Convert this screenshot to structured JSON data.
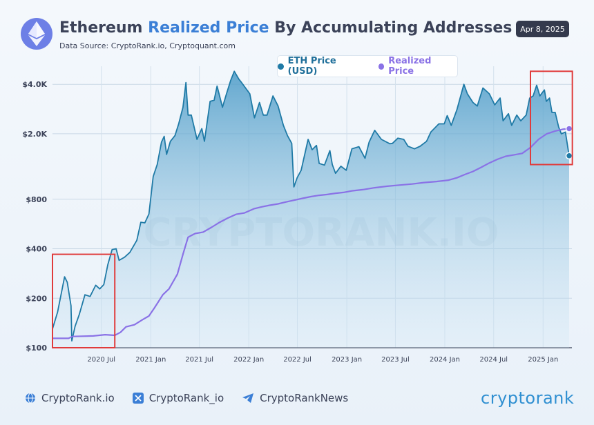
{
  "header": {
    "title_part1": "Ethereum ",
    "title_highlight": "Realized Price",
    "title_part2": " By Accumulating Addresses",
    "source": "Data Source: CryptoRank.io, Cryptoquant.com",
    "date": "Apr 8, 2025",
    "logo_icon": "ethereum-icon"
  },
  "footer": {
    "items": [
      {
        "icon": "globe-icon",
        "label": "CryptoRank.io"
      },
      {
        "icon": "x-icon",
        "label": "CryptoRank_io"
      },
      {
        "icon": "telegram-icon",
        "label": "CryptoRankNews"
      }
    ],
    "brand": "cryptorank"
  },
  "watermark": "CRYPTORANK.IO",
  "colors": {
    "eth": "#1f7aa6",
    "realized": "#8a72e6",
    "highlight": "#e03b3b",
    "title_accent": "#3b7fd6"
  },
  "chart_data": {
    "type": "line",
    "title": "Ethereum Realized Price By Accumulating Addresses",
    "xlabel": "",
    "ylabel": "",
    "y_scale": "log",
    "ylim": [
      100,
      4500
    ],
    "yticks": [
      100,
      200,
      400,
      800,
      2000,
      4000
    ],
    "ytick_labels": [
      "$100",
      "$200",
      "$400",
      "$800",
      "$2.0K",
      "$4.0K"
    ],
    "xlim": [
      "2020-01-01",
      "2025-04-08"
    ],
    "xticks": [
      "2020-07-01",
      "2021-01-01",
      "2021-07-01",
      "2022-01-01",
      "2022-07-01",
      "2023-01-01",
      "2023-07-01",
      "2024-01-01",
      "2024-07-01",
      "2025-01-01"
    ],
    "xtick_labels": [
      "2020 Jul",
      "2021 Jan",
      "2021 Jul",
      "2022 Jan",
      "2022 Jul",
      "2023 Jan",
      "2023 Jul",
      "2024 Jan",
      "2024 Jul",
      "2025 Jan"
    ],
    "grid": true,
    "legend": "top-center",
    "series": [
      {
        "name": "ETH Price (USD)",
        "color": "#1f7aa6",
        "area": true,
        "points": [
          [
            "2020-01-01",
            130
          ],
          [
            "2020-01-20",
            165
          ],
          [
            "2020-02-15",
            270
          ],
          [
            "2020-02-25",
            250
          ],
          [
            "2020-03-10",
            180
          ],
          [
            "2020-03-13",
            110
          ],
          [
            "2020-03-25",
            135
          ],
          [
            "2020-04-10",
            160
          ],
          [
            "2020-05-01",
            210
          ],
          [
            "2020-05-20",
            205
          ],
          [
            "2020-06-10",
            240
          ],
          [
            "2020-06-25",
            228
          ],
          [
            "2020-07-10",
            242
          ],
          [
            "2020-07-25",
            320
          ],
          [
            "2020-08-10",
            395
          ],
          [
            "2020-08-25",
            400
          ],
          [
            "2020-09-05",
            340
          ],
          [
            "2020-09-25",
            355
          ],
          [
            "2020-10-15",
            380
          ],
          [
            "2020-11-10",
            450
          ],
          [
            "2020-11-25",
            580
          ],
          [
            "2020-12-10",
            575
          ],
          [
            "2020-12-25",
            650
          ],
          [
            "2021-01-10",
            1100
          ],
          [
            "2021-01-25",
            1300
          ],
          [
            "2021-02-10",
            1780
          ],
          [
            "2021-02-20",
            1930
          ],
          [
            "2021-03-01",
            1500
          ],
          [
            "2021-03-15",
            1800
          ],
          [
            "2021-04-01",
            1950
          ],
          [
            "2021-04-15",
            2300
          ],
          [
            "2021-05-01",
            2900
          ],
          [
            "2021-05-12",
            4100
          ],
          [
            "2021-05-20",
            2600
          ],
          [
            "2021-06-01",
            2600
          ],
          [
            "2021-06-22",
            1850
          ],
          [
            "2021-07-10",
            2150
          ],
          [
            "2021-07-20",
            1800
          ],
          [
            "2021-08-10",
            3150
          ],
          [
            "2021-08-25",
            3200
          ],
          [
            "2021-09-05",
            3900
          ],
          [
            "2021-09-25",
            2900
          ],
          [
            "2021-10-10",
            3500
          ],
          [
            "2021-10-25",
            4200
          ],
          [
            "2021-11-08",
            4800
          ],
          [
            "2021-11-25",
            4300
          ],
          [
            "2021-12-05",
            4100
          ],
          [
            "2021-12-20",
            3800
          ],
          [
            "2022-01-05",
            3500
          ],
          [
            "2022-01-22",
            2500
          ],
          [
            "2022-02-10",
            3100
          ],
          [
            "2022-02-24",
            2600
          ],
          [
            "2022-03-10",
            2600
          ],
          [
            "2022-04-01",
            3400
          ],
          [
            "2022-04-20",
            2950
          ],
          [
            "2022-05-10",
            2250
          ],
          [
            "2022-05-25",
            1950
          ],
          [
            "2022-06-10",
            1750
          ],
          [
            "2022-06-18",
            950
          ],
          [
            "2022-06-30",
            1080
          ],
          [
            "2022-07-15",
            1200
          ],
          [
            "2022-08-10",
            1850
          ],
          [
            "2022-08-25",
            1600
          ],
          [
            "2022-09-10",
            1700
          ],
          [
            "2022-09-20",
            1320
          ],
          [
            "2022-10-10",
            1290
          ],
          [
            "2022-10-30",
            1580
          ],
          [
            "2022-11-08",
            1300
          ],
          [
            "2022-11-20",
            1150
          ],
          [
            "2022-12-10",
            1270
          ],
          [
            "2022-12-30",
            1200
          ],
          [
            "2023-01-20",
            1620
          ],
          [
            "2023-02-15",
            1670
          ],
          [
            "2023-03-10",
            1420
          ],
          [
            "2023-03-25",
            1780
          ],
          [
            "2023-04-15",
            2100
          ],
          [
            "2023-05-10",
            1850
          ],
          [
            "2023-06-10",
            1740
          ],
          [
            "2023-06-20",
            1750
          ],
          [
            "2023-07-10",
            1880
          ],
          [
            "2023-08-01",
            1850
          ],
          [
            "2023-08-17",
            1680
          ],
          [
            "2023-09-10",
            1620
          ],
          [
            "2023-10-01",
            1680
          ],
          [
            "2023-10-25",
            1800
          ],
          [
            "2023-11-10",
            2050
          ],
          [
            "2023-12-10",
            2300
          ],
          [
            "2023-12-30",
            2300
          ],
          [
            "2024-01-10",
            2580
          ],
          [
            "2024-01-25",
            2250
          ],
          [
            "2024-02-15",
            2800
          ],
          [
            "2024-03-12",
            4000
          ],
          [
            "2024-03-25",
            3500
          ],
          [
            "2024-04-15",
            3100
          ],
          [
            "2024-05-01",
            2950
          ],
          [
            "2024-05-22",
            3800
          ],
          [
            "2024-06-15",
            3500
          ],
          [
            "2024-07-05",
            3000
          ],
          [
            "2024-07-25",
            3300
          ],
          [
            "2024-08-05",
            2400
          ],
          [
            "2024-08-25",
            2650
          ],
          [
            "2024-09-06",
            2250
          ],
          [
            "2024-09-25",
            2600
          ],
          [
            "2024-10-10",
            2400
          ],
          [
            "2024-10-30",
            2600
          ],
          [
            "2024-11-12",
            3300
          ],
          [
            "2024-11-25",
            3400
          ],
          [
            "2024-12-08",
            3950
          ],
          [
            "2024-12-20",
            3400
          ],
          [
            "2025-01-06",
            3700
          ],
          [
            "2025-01-13",
            3150
          ],
          [
            "2025-01-25",
            3300
          ],
          [
            "2025-02-03",
            2700
          ],
          [
            "2025-02-15",
            2700
          ],
          [
            "2025-02-28",
            2200
          ],
          [
            "2025-03-10",
            2000
          ],
          [
            "2025-03-25",
            2050
          ],
          [
            "2025-04-08",
            1470
          ]
        ]
      },
      {
        "name": "Realized Price",
        "color": "#8a72e6",
        "area": false,
        "points": [
          [
            "2020-01-01",
            114
          ],
          [
            "2020-03-01",
            114
          ],
          [
            "2020-03-15",
            117
          ],
          [
            "2020-06-01",
            118
          ],
          [
            "2020-07-15",
            120
          ],
          [
            "2020-08-20",
            119
          ],
          [
            "2020-09-10",
            124
          ],
          [
            "2020-10-01",
            134
          ],
          [
            "2020-11-01",
            138
          ],
          [
            "2020-12-01",
            148
          ],
          [
            "2020-12-25",
            156
          ],
          [
            "2021-01-15",
            175
          ],
          [
            "2021-02-15",
            210
          ],
          [
            "2021-03-10",
            228
          ],
          [
            "2021-04-10",
            280
          ],
          [
            "2021-05-01",
            370
          ],
          [
            "2021-05-20",
            470
          ],
          [
            "2021-06-15",
            495
          ],
          [
            "2021-07-15",
            505
          ],
          [
            "2021-08-15",
            540
          ],
          [
            "2021-09-15",
            580
          ],
          [
            "2021-10-15",
            615
          ],
          [
            "2021-11-15",
            648
          ],
          [
            "2021-12-15",
            660
          ],
          [
            "2022-01-20",
            700
          ],
          [
            "2022-02-20",
            720
          ],
          [
            "2022-03-20",
            735
          ],
          [
            "2022-04-20",
            750
          ],
          [
            "2022-05-20",
            770
          ],
          [
            "2022-06-20",
            790
          ],
          [
            "2022-07-20",
            810
          ],
          [
            "2022-08-20",
            830
          ],
          [
            "2022-09-20",
            845
          ],
          [
            "2022-10-20",
            855
          ],
          [
            "2022-11-20",
            870
          ],
          [
            "2022-12-20",
            880
          ],
          [
            "2023-01-20",
            900
          ],
          [
            "2023-03-01",
            915
          ],
          [
            "2023-04-15",
            940
          ],
          [
            "2023-06-01",
            960
          ],
          [
            "2023-07-15",
            975
          ],
          [
            "2023-09-01",
            990
          ],
          [
            "2023-10-15",
            1010
          ],
          [
            "2023-12-01",
            1025
          ],
          [
            "2024-01-15",
            1045
          ],
          [
            "2024-02-15",
            1080
          ],
          [
            "2024-03-15",
            1130
          ],
          [
            "2024-04-15",
            1180
          ],
          [
            "2024-05-15",
            1250
          ],
          [
            "2024-06-15",
            1330
          ],
          [
            "2024-07-15",
            1400
          ],
          [
            "2024-08-15",
            1460
          ],
          [
            "2024-09-15",
            1490
          ],
          [
            "2024-10-15",
            1520
          ],
          [
            "2024-11-15",
            1650
          ],
          [
            "2024-12-15",
            1850
          ],
          [
            "2025-01-15",
            2000
          ],
          [
            "2025-02-15",
            2080
          ],
          [
            "2025-03-15",
            2130
          ],
          [
            "2025-04-08",
            2150
          ]
        ]
      }
    ],
    "annotations": [
      {
        "type": "box",
        "color": "#e03b3b",
        "x_range": [
          "2020-01-01",
          "2020-08-20"
        ],
        "y_range": [
          100,
          370
        ]
      },
      {
        "type": "box",
        "color": "#e03b3b",
        "x_range": [
          "2024-11-15",
          "2025-04-20"
        ],
        "y_range": [
          1300,
          4800
        ]
      }
    ]
  }
}
